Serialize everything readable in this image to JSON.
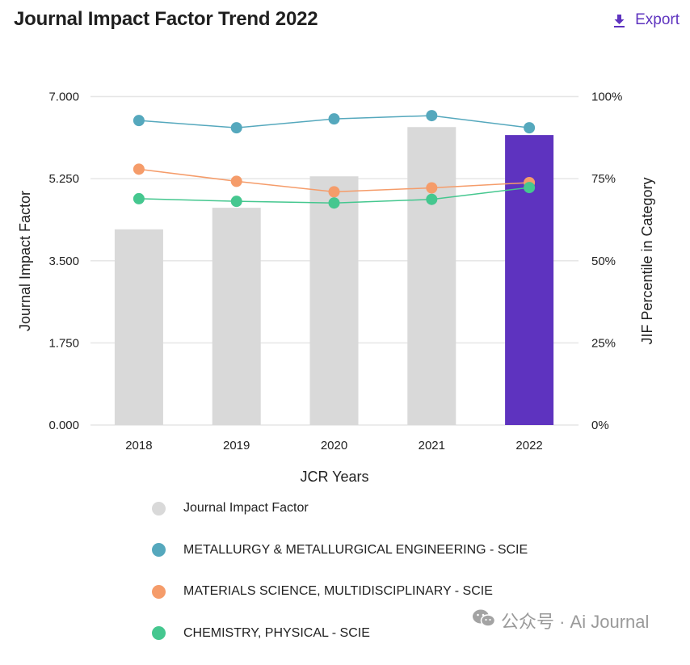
{
  "header": {
    "title": "Journal Impact Factor Trend 2022",
    "export_label": "Export",
    "export_icon": "download-icon"
  },
  "watermark": {
    "icon": "wechat-icon",
    "text": "公众号 · Ai Journal"
  },
  "colors": {
    "bar_default": "#d9d9d9",
    "bar_highlight": "#5e33bf",
    "metallurgy": "#55a8bd",
    "materials": "#f59c6a",
    "chemistry": "#45c78f",
    "gridline": "#e6e6e6",
    "accent": "#5e33bf"
  },
  "chart_data": {
    "type": "bar",
    "title": "Journal Impact Factor Trend 2022",
    "xlabel": "JCR Years",
    "ylabel": "Journal Impact Factor",
    "y2label": "JIF Percentile in Category",
    "categories": [
      "2018",
      "2019",
      "2020",
      "2021",
      "2022"
    ],
    "ylim": [
      0,
      7
    ],
    "y_ticks": [
      "0.000",
      "1.750",
      "3.500",
      "5.250",
      "7.000"
    ],
    "y2lim": [
      0,
      100
    ],
    "y2_ticks": [
      "0%",
      "25%",
      "50%",
      "75%",
      "100%"
    ],
    "grid": true,
    "legend_position": "bottom",
    "highlight_category": "2022",
    "bar_series": {
      "name": "Journal Impact Factor",
      "values": [
        4.17,
        4.63,
        5.3,
        6.35,
        6.18
      ]
    },
    "line_series": [
      {
        "name": "METALLURGY & METALLURGICAL ENGINEERING - SCIE",
        "color_key": "metallurgy",
        "axis": "right",
        "values": [
          92.7,
          90.5,
          93.2,
          94.2,
          90.5
        ]
      },
      {
        "name": "MATERIALS SCIENCE, MULTIDISCIPLINARY - SCIE",
        "color_key": "materials",
        "axis": "right",
        "values": [
          77.9,
          74.2,
          71.0,
          72.2,
          73.8
        ]
      },
      {
        "name": "CHEMISTRY, PHYSICAL - SCIE",
        "color_key": "chemistry",
        "axis": "right",
        "values": [
          68.9,
          68.1,
          67.6,
          68.7,
          72.3
        ]
      }
    ]
  },
  "legend": [
    {
      "label": "Journal Impact Factor",
      "color_key": "bar_default"
    },
    {
      "label": "METALLURGY & METALLURGICAL ENGINEERING - SCIE",
      "color_key": "metallurgy"
    },
    {
      "label": "MATERIALS SCIENCE, MULTIDISCIPLINARY - SCIE",
      "color_key": "materials"
    },
    {
      "label": "CHEMISTRY, PHYSICAL - SCIE",
      "color_key": "chemistry"
    }
  ]
}
